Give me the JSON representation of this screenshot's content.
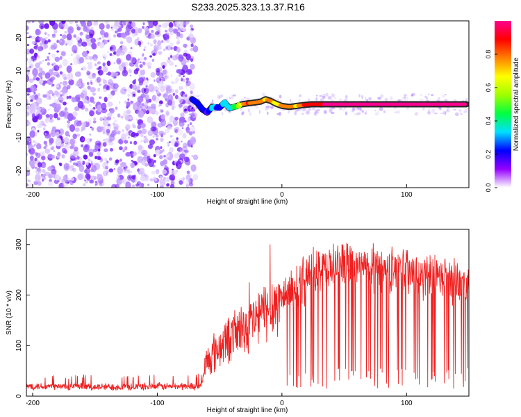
{
  "title": "S233.2025.323.13.37.R16",
  "chart_data": [
    {
      "type": "heatmap",
      "xlabel": "Height of straight line (km)",
      "ylabel": "Frequency (Hz)",
      "xlim": [
        -205,
        150
      ],
      "ylim": [
        -25,
        25
      ],
      "xticks": [
        -200,
        -100,
        0,
        100
      ],
      "yticks": [
        -20,
        -10,
        0,
        10,
        20
      ],
      "noise_region_x": [
        -205,
        -72
      ],
      "line_segments": [
        {
          "x": -72,
          "y": 1.5,
          "amp": 0.25
        },
        {
          "x": -68,
          "y": 0.5,
          "amp": 0.2
        },
        {
          "x": -64,
          "y": -1.5,
          "amp": 0.25
        },
        {
          "x": -60,
          "y": -2.5,
          "amp": 0.15
        },
        {
          "x": -56,
          "y": -0.8,
          "amp": 0.3
        },
        {
          "x": -50,
          "y": -1.0,
          "amp": 0.25
        },
        {
          "x": -46,
          "y": 0.5,
          "amp": 0.3
        },
        {
          "x": -42,
          "y": -1.2,
          "amp": 0.35
        },
        {
          "x": -36,
          "y": -0.5,
          "amp": 0.45
        },
        {
          "x": -32,
          "y": 0.0,
          "amp": 0.7
        },
        {
          "x": -27,
          "y": 0.3,
          "amp": 0.85
        },
        {
          "x": -22,
          "y": 0.5,
          "amp": 0.75
        },
        {
          "x": -17,
          "y": 0.8,
          "amp": 0.8
        },
        {
          "x": -13,
          "y": 1.5,
          "amp": 0.7
        },
        {
          "x": -9,
          "y": 1.0,
          "amp": 0.8
        },
        {
          "x": -5,
          "y": 0.2,
          "amp": 0.65
        },
        {
          "x": 0,
          "y": -0.5,
          "amp": 0.75
        },
        {
          "x": 6,
          "y": -0.8,
          "amp": 0.8
        },
        {
          "x": 12,
          "y": -0.5,
          "amp": 0.7
        },
        {
          "x": 18,
          "y": -0.2,
          "amp": 0.85
        },
        {
          "x": 24,
          "y": 0.0,
          "amp": 0.9
        },
        {
          "x": 35,
          "y": 0.0,
          "amp": 0.95
        },
        {
          "x": 50,
          "y": 0.0,
          "amp": 0.95
        },
        {
          "x": 70,
          "y": 0.0,
          "amp": 0.95
        },
        {
          "x": 90,
          "y": 0.0,
          "amp": 0.95
        },
        {
          "x": 110,
          "y": 0.0,
          "amp": 0.95
        },
        {
          "x": 130,
          "y": 0.0,
          "amp": 0.95
        },
        {
          "x": 148,
          "y": 0.0,
          "amp": 0.95
        }
      ],
      "colorbar": {
        "label": "Normalized spectral amplitude",
        "range": [
          0.0,
          1.0
        ],
        "ticks": [
          "0.0",
          "0.2",
          "0.4",
          "0.6",
          "0.8"
        ],
        "colors": [
          "#ffffff",
          "#9400ff",
          "#0000ff",
          "#00e0ff",
          "#00ff40",
          "#a0ff00",
          "#ffff00",
          "#ff8000",
          "#ff0000",
          "#ff0090"
        ]
      }
    },
    {
      "type": "line",
      "xlabel": "Height of straight line (km)",
      "ylabel": "SNR (10 * v/v)",
      "xlim": [
        -205,
        150
      ],
      "ylim": [
        0,
        330
      ],
      "xticks": [
        -200,
        -100,
        0,
        100
      ],
      "yticks": [
        0,
        100,
        200,
        300
      ],
      "series_color": "#ee2020",
      "snr_profile": [
        {
          "x": -205,
          "y": 20
        },
        {
          "x": -150,
          "y": 18
        },
        {
          "x": -65,
          "y": 20
        },
        {
          "x": -60,
          "y": 70
        },
        {
          "x": -45,
          "y": 110
        },
        {
          "x": -25,
          "y": 145
        },
        {
          "x": -10,
          "y": 175
        },
        {
          "x": 5,
          "y": 205
        },
        {
          "x": 20,
          "y": 235
        },
        {
          "x": 35,
          "y": 255
        },
        {
          "x": 50,
          "y": 262
        },
        {
          "x": 65,
          "y": 255
        },
        {
          "x": 80,
          "y": 250
        },
        {
          "x": 100,
          "y": 245
        },
        {
          "x": 120,
          "y": 232
        },
        {
          "x": 140,
          "y": 230
        },
        {
          "x": 150,
          "y": 225
        }
      ]
    }
  ]
}
